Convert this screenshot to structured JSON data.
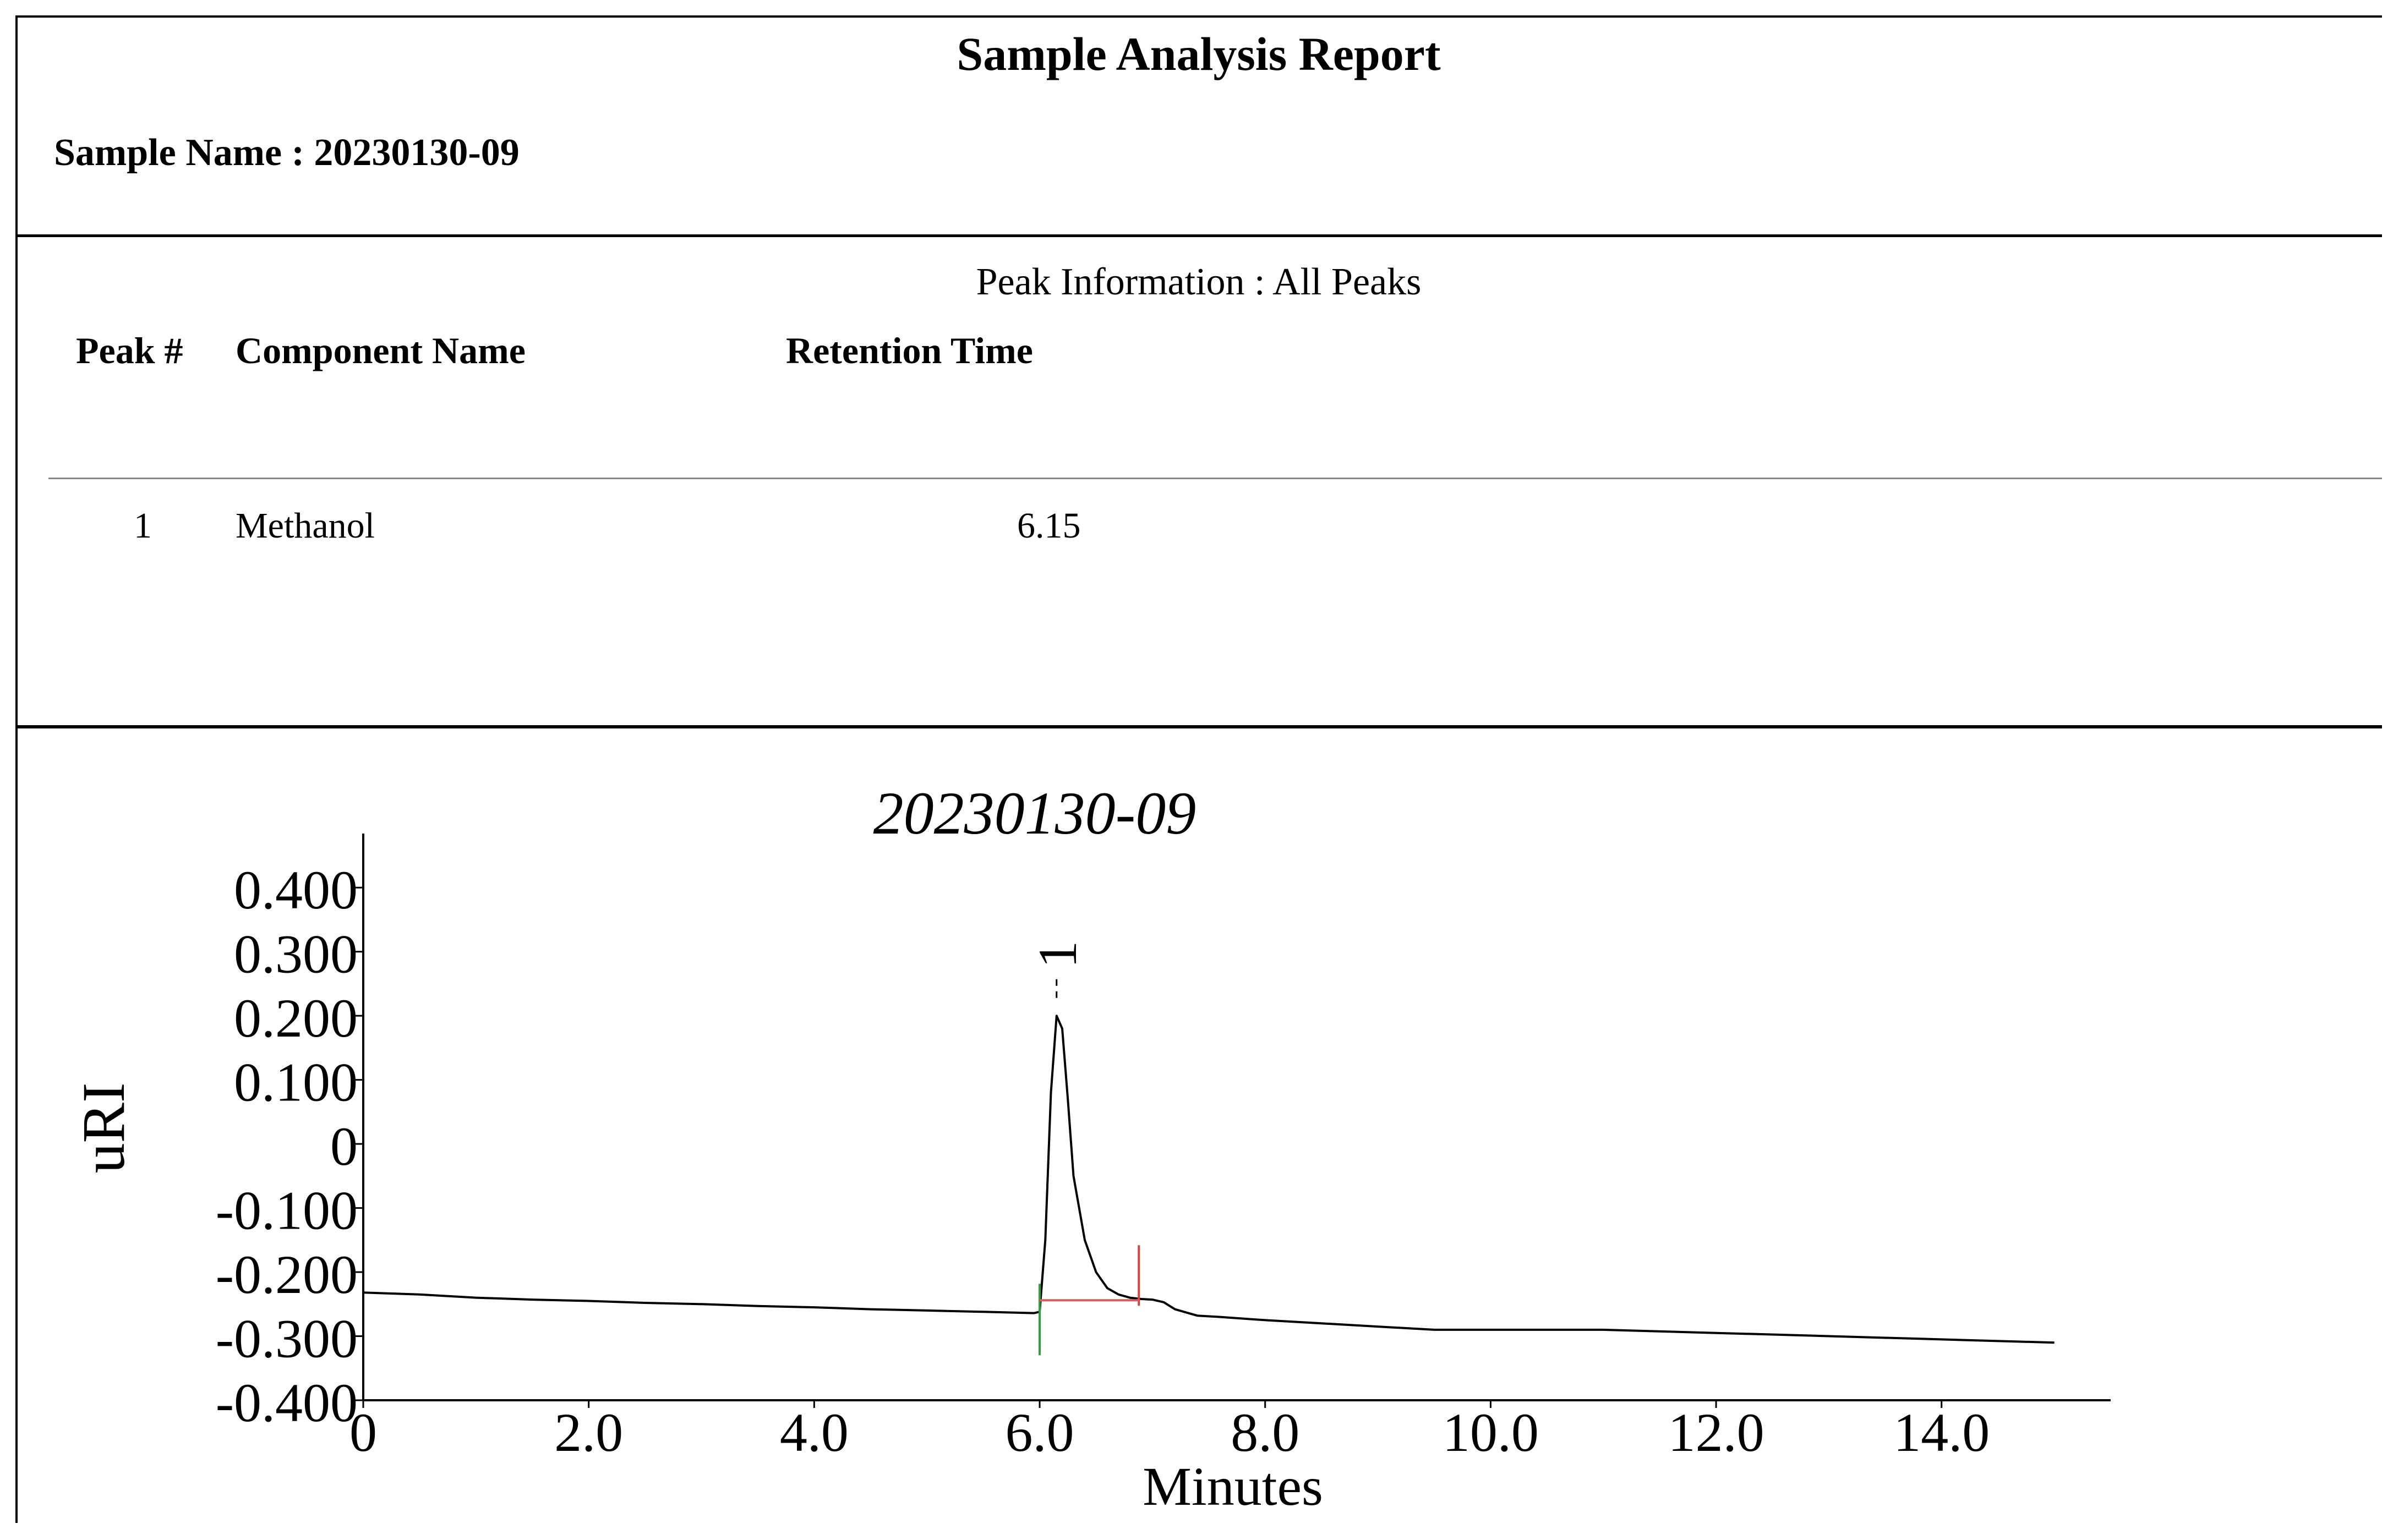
{
  "report": {
    "title": "Sample Analysis Report",
    "sample_name_label": "Sample Name : 20230130-09"
  },
  "peak_info": {
    "title": "Peak Information : All Peaks",
    "columns": [
      "Peak #",
      "Component Name",
      "Retention Time"
    ],
    "rows": [
      {
        "peak": "1",
        "component": "Methanol",
        "retention_time": "6.15"
      }
    ]
  },
  "chart_data": {
    "type": "line",
    "title": "20230130-09",
    "xlabel": "Minutes",
    "ylabel": "uRI",
    "xlim": [
      0,
      15.5
    ],
    "ylim": [
      -0.4,
      0.45
    ],
    "x_ticks": [
      "0",
      "2.0",
      "4.0",
      "6.0",
      "8.0",
      "10.0",
      "12.0",
      "14.0"
    ],
    "x_tick_values": [
      0,
      2,
      4,
      6,
      8,
      10,
      12,
      14
    ],
    "y_ticks": [
      "0.400",
      "0.300",
      "0.200",
      "0.100",
      "0",
      "-0.100",
      "-0.200",
      "-0.300",
      "-0.400"
    ],
    "y_tick_values": [
      0.4,
      0.3,
      0.2,
      0.1,
      0,
      -0.1,
      -0.2,
      -0.3,
      -0.4
    ],
    "series": [
      {
        "x": [
          0,
          0.5,
          1,
          1.5,
          2,
          2.5,
          3,
          3.5,
          4,
          4.5,
          5,
          5.5,
          5.95,
          6.0,
          6.05,
          6.1,
          6.15,
          6.2,
          6.25,
          6.3,
          6.4,
          6.5,
          6.6,
          6.7,
          6.8,
          6.9,
          7.0,
          7.1,
          7.2,
          7.4,
          7.6,
          8.0,
          8.5,
          9.0,
          9.5,
          10.0,
          11.0,
          12.0,
          13.0,
          14.0,
          15.0
        ],
        "y": [
          -0.232,
          -0.235,
          -0.24,
          -0.243,
          -0.245,
          -0.248,
          -0.25,
          -0.253,
          -0.255,
          -0.258,
          -0.26,
          -0.262,
          -0.264,
          -0.262,
          -0.15,
          0.08,
          0.2,
          0.18,
          0.07,
          -0.05,
          -0.15,
          -0.2,
          -0.225,
          -0.235,
          -0.24,
          -0.242,
          -0.243,
          -0.247,
          -0.258,
          -0.268,
          -0.27,
          -0.275,
          -0.28,
          -0.285,
          -0.29,
          -0.29,
          -0.29,
          -0.295,
          -0.3,
          -0.305,
          -0.31
        ]
      }
    ],
    "annotations": [
      {
        "text": "1",
        "x": 6.15,
        "y": 0.3
      }
    ],
    "integration": {
      "start_x": 6.0,
      "end_x": 6.88,
      "baseline_y": -0.244
    },
    "colors": {
      "trace": "#000000",
      "start_marker": "#2e9e3e",
      "end_marker": "#d9413a",
      "baseline": "#e05a5a"
    }
  }
}
